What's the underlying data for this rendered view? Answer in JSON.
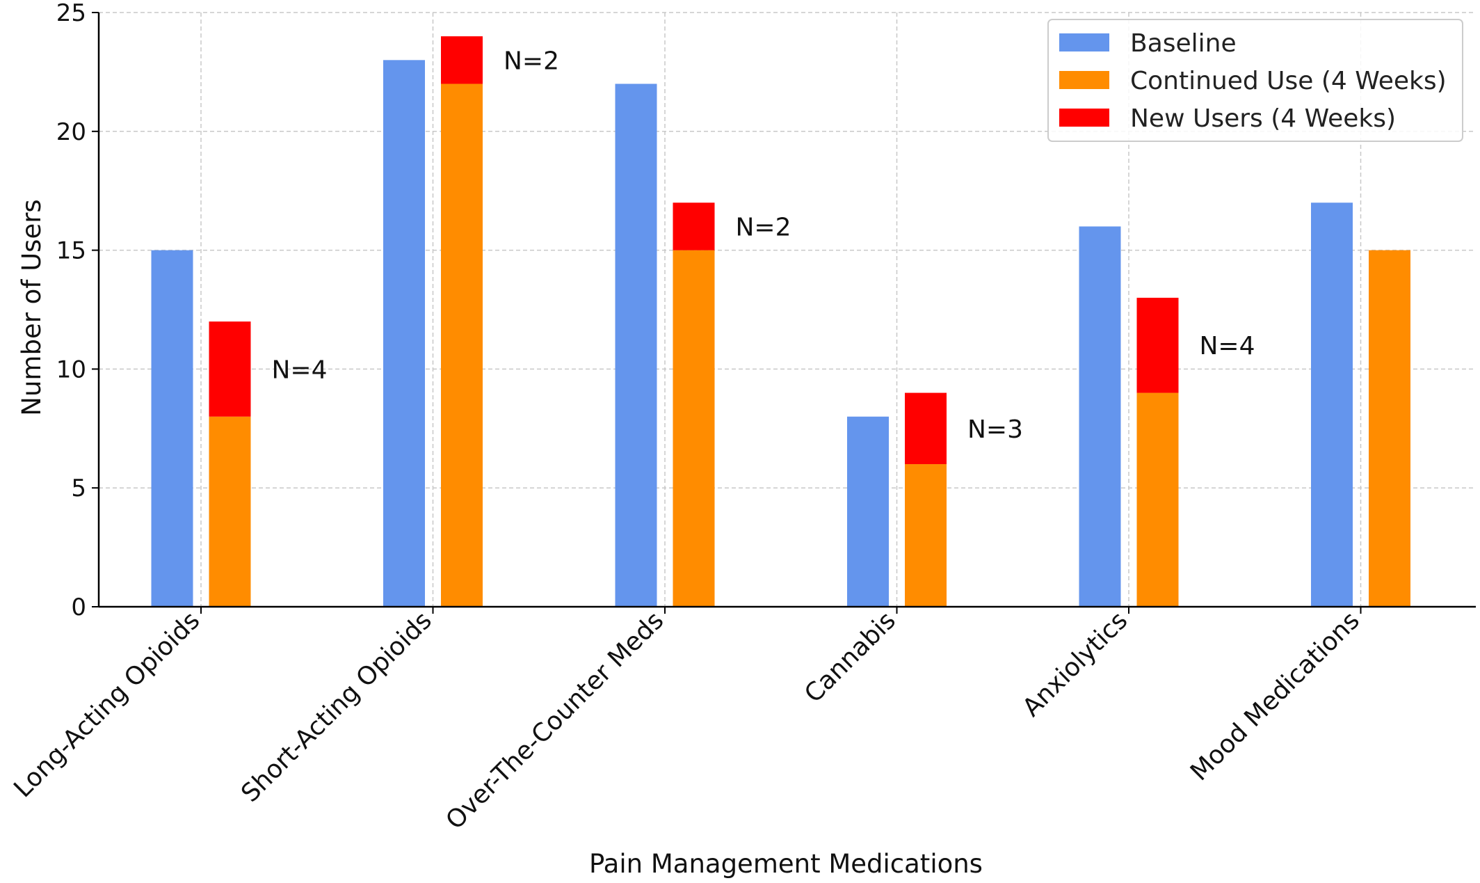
{
  "chart_data": {
    "type": "bar",
    "title": "",
    "xlabel": "Pain Management Medications",
    "ylabel": "Number of Users",
    "ylim": [
      0,
      25
    ],
    "yticks": [
      0,
      5,
      10,
      15,
      20,
      25
    ],
    "grid": true,
    "legend_position": "top-right",
    "categories": [
      "Long-Acting Opioids",
      "Short-Acting Opioids",
      "Over-The-Counter Meds",
      "Cannabis",
      "Anxiolytics",
      "Mood Medications"
    ],
    "series": [
      {
        "name": "Baseline",
        "color": "#6495ED",
        "values": [
          15,
          23,
          22,
          8,
          16,
          17
        ]
      },
      {
        "name": "Continued Use (4 Weeks)",
        "color": "#FF8C00",
        "values": [
          8,
          22,
          15,
          6,
          9,
          15
        ]
      },
      {
        "name": "New Users (4 Weeks)",
        "color": "#FF0000",
        "values": [
          4,
          2,
          2,
          3,
          4,
          0
        ],
        "stacked_on": "Continued Use (4 Weeks)"
      }
    ],
    "annotations": [
      "N=4",
      "N=2",
      "N=2",
      "N=3",
      "N=4",
      ""
    ]
  }
}
